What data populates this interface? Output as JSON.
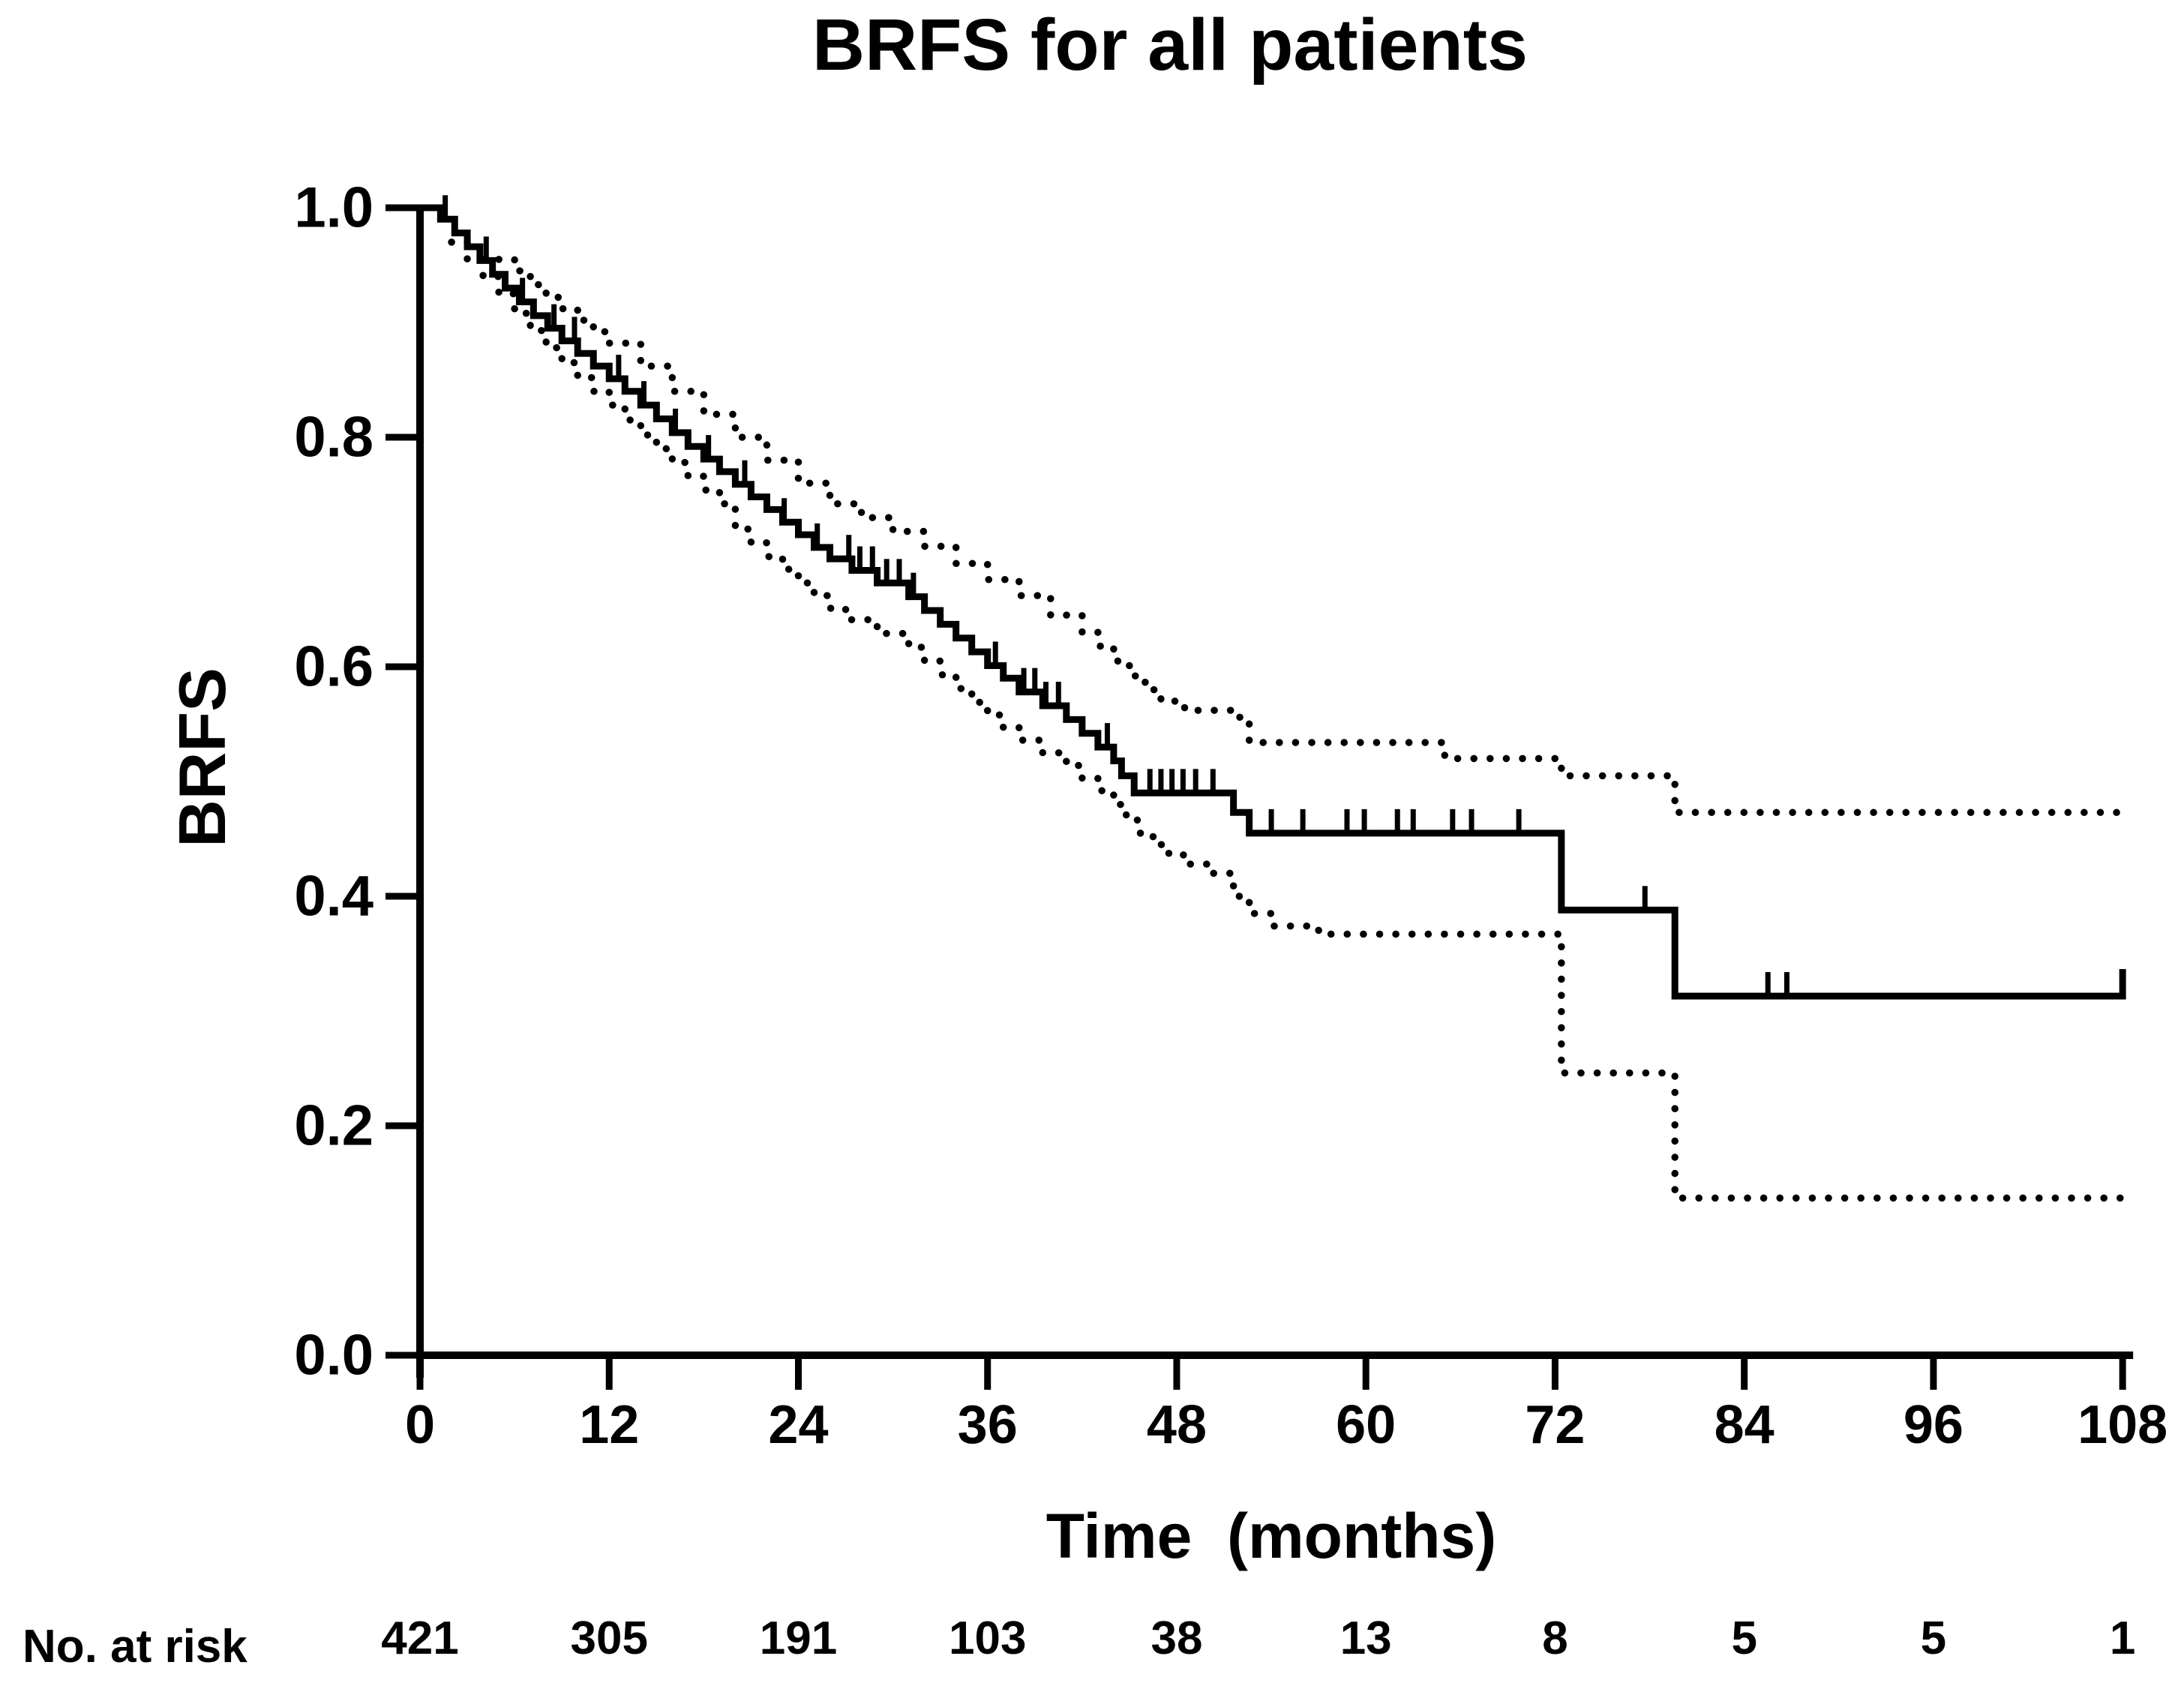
{
  "title": "BRFS for all patients",
  "y_axis": {
    "label": "BRFS"
  },
  "x_axis": {
    "label": "Time  (months)"
  },
  "risk_row": {
    "label": "No. at risk"
  },
  "colors": {
    "line": "#000000",
    "background": "#ffffff"
  },
  "chart_data": {
    "type": "line",
    "subtype": "kaplan-meier-step",
    "title": "BRFS for all patients",
    "xlabel": "Time  (months)",
    "ylabel": "BRFS",
    "xlim": [
      0,
      108
    ],
    "ylim": [
      0.0,
      1.0
    ],
    "x_ticks": [
      0,
      12,
      24,
      36,
      48,
      60,
      72,
      84,
      96,
      108
    ],
    "y_ticks": [
      1.0,
      0.8,
      0.6,
      0.4,
      0.2,
      0.0
    ],
    "grid": false,
    "legend": "none",
    "series": [
      {
        "name": "BRFS Kaplan-Meier estimate",
        "style": "solid-step",
        "steps": [
          [
            0,
            1.0
          ],
          [
            1.3,
            0.99
          ],
          [
            2.2,
            0.978
          ],
          [
            3.0,
            0.966
          ],
          [
            3.8,
            0.954
          ],
          [
            4.6,
            0.942
          ],
          [
            5.4,
            0.93
          ],
          [
            6.3,
            0.918
          ],
          [
            7.2,
            0.906
          ],
          [
            8.1,
            0.895
          ],
          [
            9.0,
            0.884
          ],
          [
            10,
            0.873
          ],
          [
            11,
            0.862
          ],
          [
            12,
            0.851
          ],
          [
            13,
            0.84
          ],
          [
            14,
            0.828
          ],
          [
            15,
            0.816
          ],
          [
            16,
            0.804
          ],
          [
            17,
            0.792
          ],
          [
            18,
            0.781
          ],
          [
            19,
            0.77
          ],
          [
            20,
            0.759
          ],
          [
            21,
            0.748
          ],
          [
            22,
            0.737
          ],
          [
            23,
            0.726
          ],
          [
            24,
            0.715
          ],
          [
            25,
            0.704
          ],
          [
            26,
            0.694
          ],
          [
            27.4,
            0.684
          ],
          [
            29,
            0.673
          ],
          [
            31,
            0.661
          ],
          [
            32,
            0.649
          ],
          [
            33,
            0.637
          ],
          [
            34,
            0.625
          ],
          [
            35,
            0.613
          ],
          [
            36,
            0.601
          ],
          [
            37,
            0.59
          ],
          [
            38,
            0.578
          ],
          [
            39.5,
            0.566
          ],
          [
            41,
            0.554
          ],
          [
            42,
            0.542
          ],
          [
            43,
            0.53
          ],
          [
            44,
            0.518
          ],
          [
            44.5,
            0.505
          ],
          [
            45.3,
            0.49
          ],
          [
            51.6,
            0.473
          ],
          [
            52.6,
            0.455
          ],
          [
            72.4,
            0.388
          ],
          [
            79.6,
            0.313
          ]
        ]
      },
      {
        "name": "Upper 95% CI",
        "style": "dotted-step",
        "steps": [
          [
            5,
            0.955
          ],
          [
            6,
            0.945
          ],
          [
            7,
            0.933
          ],
          [
            8,
            0.922
          ],
          [
            9,
            0.912
          ],
          [
            10,
            0.902
          ],
          [
            11,
            0.892
          ],
          [
            12,
            0.882
          ],
          [
            14,
            0.862
          ],
          [
            16,
            0.84
          ],
          [
            18,
            0.82
          ],
          [
            20,
            0.8
          ],
          [
            22,
            0.78
          ],
          [
            24,
            0.76
          ],
          [
            26,
            0.742
          ],
          [
            28,
            0.73
          ],
          [
            30,
            0.718
          ],
          [
            32,
            0.705
          ],
          [
            34,
            0.69
          ],
          [
            36,
            0.676
          ],
          [
            38,
            0.662
          ],
          [
            40,
            0.645
          ],
          [
            42,
            0.63
          ],
          [
            43,
            0.618
          ],
          [
            44,
            0.605
          ],
          [
            45,
            0.592
          ],
          [
            46,
            0.58
          ],
          [
            47,
            0.57
          ],
          [
            48.5,
            0.562
          ],
          [
            51.6,
            0.556
          ],
          [
            52.6,
            0.534
          ],
          [
            65,
            0.52
          ],
          [
            72.4,
            0.505
          ],
          [
            79.6,
            0.473
          ]
        ]
      },
      {
        "name": "Lower 95% CI",
        "style": "dotted-step",
        "steps": [
          [
            2,
            0.97
          ],
          [
            3,
            0.955
          ],
          [
            4,
            0.94
          ],
          [
            5,
            0.925
          ],
          [
            6,
            0.908
          ],
          [
            7,
            0.893
          ],
          [
            8,
            0.878
          ],
          [
            9,
            0.865
          ],
          [
            10,
            0.852
          ],
          [
            11,
            0.84
          ],
          [
            12,
            0.828
          ],
          [
            13,
            0.815
          ],
          [
            14,
            0.802
          ],
          [
            15,
            0.79
          ],
          [
            16,
            0.778
          ],
          [
            17,
            0.766
          ],
          [
            18,
            0.754
          ],
          [
            19,
            0.742
          ],
          [
            20,
            0.72
          ],
          [
            21,
            0.708
          ],
          [
            22,
            0.696
          ],
          [
            23,
            0.685
          ],
          [
            24,
            0.673
          ],
          [
            25,
            0.662
          ],
          [
            26,
            0.651
          ],
          [
            27,
            0.641
          ],
          [
            29,
            0.629
          ],
          [
            31,
            0.617
          ],
          [
            32,
            0.605
          ],
          [
            33,
            0.593
          ],
          [
            34,
            0.581
          ],
          [
            35,
            0.569
          ],
          [
            36,
            0.558
          ],
          [
            37,
            0.547
          ],
          [
            38,
            0.536
          ],
          [
            39.5,
            0.525
          ],
          [
            41,
            0.514
          ],
          [
            42,
            0.503
          ],
          [
            43,
            0.492
          ],
          [
            44,
            0.48
          ],
          [
            44.8,
            0.468
          ],
          [
            45.5,
            0.455
          ],
          [
            46.5,
            0.445
          ],
          [
            47.5,
            0.436
          ],
          [
            48.5,
            0.428
          ],
          [
            50,
            0.42
          ],
          [
            51.6,
            0.4
          ],
          [
            52.6,
            0.385
          ],
          [
            54,
            0.374
          ],
          [
            57,
            0.367
          ],
          [
            72.4,
            0.246
          ],
          [
            79.6,
            0.137
          ]
        ]
      }
    ],
    "censor_times": [
      1.6,
      4.2,
      6.5,
      8.5,
      9.8,
      12.6,
      14.2,
      16.2,
      18.3,
      20.6,
      23.1,
      25.2,
      27.2,
      27.9,
      28.7,
      29.6,
      30.4,
      31.3,
      36.5,
      38.3,
      39.0,
      39.7,
      40.5,
      43.6,
      46.3,
      47.0,
      47.7,
      48.4,
      49.2,
      50.3,
      54.0,
      56.0,
      58.8,
      59.9,
      62.0,
      63.0,
      65.5,
      66.7,
      69.7,
      77.7,
      85.5,
      86.7
    ],
    "end_tick_time": 108,
    "no_at_risk": {
      "label": "No. at risk",
      "times": [
        0,
        12,
        24,
        36,
        48,
        60,
        72,
        84,
        96,
        108
      ],
      "counts": [
        421,
        305,
        191,
        103,
        38,
        13,
        8,
        5,
        5,
        1
      ]
    }
  }
}
